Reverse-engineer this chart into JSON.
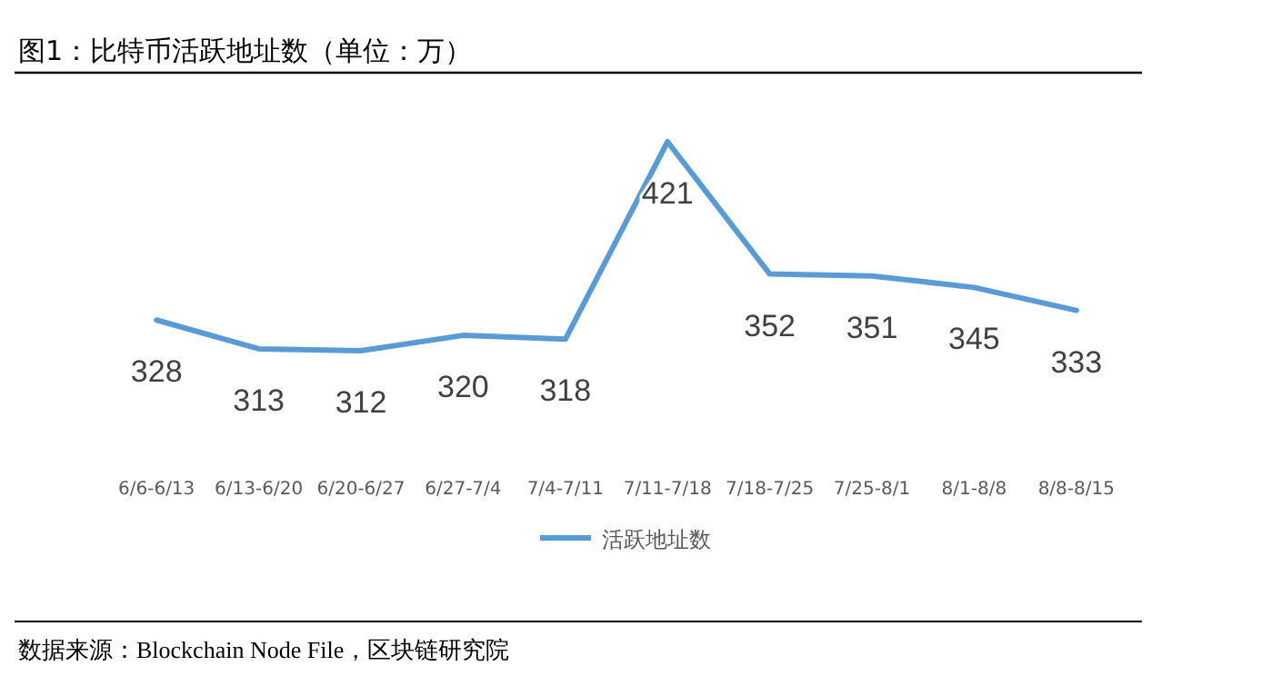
{
  "chart_data": {
    "type": "line",
    "title": "图1：比特币活跃地址数（单位：万）",
    "categories": [
      "6/6-6/13",
      "6/13-6/20",
      "6/20-6/27",
      "6/27-7/4",
      "7/4-7/11",
      "7/11-7/18",
      "7/18-7/25",
      "7/25-8/1",
      "8/1-8/8",
      "8/8-8/15"
    ],
    "series": [
      {
        "name": "活跃地址数",
        "color": "#5b9bd5",
        "values": [
          328,
          313,
          312,
          320,
          318,
          421,
          352,
          351,
          345,
          333
        ]
      }
    ],
    "data_labels": true,
    "legend": "bottom",
    "marker": "none",
    "line_style": "solid",
    "tick_labels": "x",
    "annotations": [
      "数据来源：Blockchain Node File，区块链研究院"
    ]
  }
}
